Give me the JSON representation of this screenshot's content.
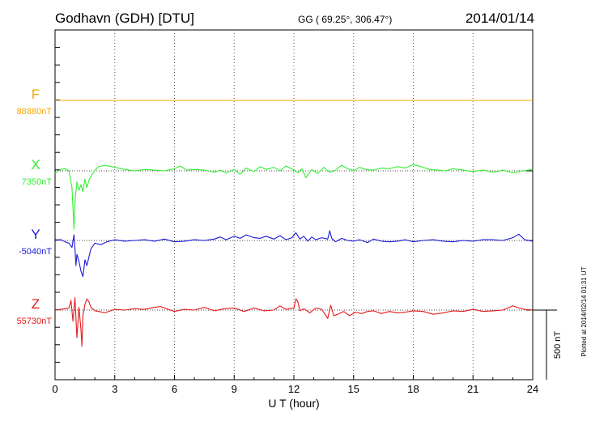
{
  "header": {
    "station": "Godhavn (GDH)  [DTU]",
    "coords": "GG ( 69.25°, 306.47°)",
    "date": "2014/01/14"
  },
  "footer": {
    "plotted": "Plotted at 2014/02/14 01:31  UT"
  },
  "chart_data": {
    "type": "line",
    "xlabel": "U T (hour)",
    "xlim": [
      0,
      24
    ],
    "xticks": [
      0,
      3,
      6,
      9,
      12,
      15,
      18,
      21,
      24
    ],
    "xtick_labels": [
      "0",
      "3",
      "6",
      "9",
      "12",
      "15",
      "18",
      "21",
      "24"
    ],
    "scale_bar_label": "500 nT",
    "scale_bar_nT": 500,
    "series": [
      {
        "name": "F",
        "baseline_label": "88880nT",
        "color": "#f5a800",
        "x": [
          0,
          24
        ],
        "y": [
          0,
          0
        ]
      },
      {
        "name": "X",
        "baseline_label": "7350nT",
        "color": "#33ee33",
        "x": [
          0.0,
          0.3,
          0.5,
          0.7,
          0.85,
          0.95,
          1.0,
          1.1,
          1.2,
          1.3,
          1.4,
          1.5,
          1.6,
          1.7,
          1.8,
          2.0,
          2.2,
          2.5,
          3.0,
          3.5,
          4.0,
          4.5,
          5.0,
          5.5,
          6.0,
          6.3,
          6.6,
          7.0,
          7.5,
          8.0,
          8.3,
          8.6,
          9.0,
          9.3,
          9.6,
          10.0,
          10.3,
          10.6,
          11.0,
          11.3,
          11.6,
          12.0,
          12.2,
          12.4,
          12.6,
          12.9,
          13.2,
          13.5,
          13.8,
          14.1,
          14.4,
          14.7,
          15.0,
          15.3,
          15.6,
          16.0,
          16.4,
          16.8,
          17.2,
          17.6,
          18.0,
          18.4,
          18.8,
          19.2,
          19.6,
          20.0,
          20.5,
          21.0,
          21.5,
          22.0,
          22.5,
          23.0,
          23.5,
          24.0
        ],
        "y": [
          -15,
          10,
          15,
          0,
          -120,
          -420,
          -220,
          -80,
          -140,
          -100,
          -150,
          -60,
          -120,
          -70,
          -40,
          5,
          30,
          40,
          25,
          10,
          0,
          10,
          5,
          0,
          15,
          35,
          5,
          10,
          5,
          -10,
          5,
          -15,
          10,
          -25,
          20,
          -5,
          30,
          10,
          25,
          0,
          35,
          5,
          -15,
          15,
          -50,
          10,
          -20,
          25,
          -10,
          5,
          40,
          15,
          0,
          25,
          10,
          5,
          20,
          15,
          30,
          20,
          45,
          30,
          10,
          5,
          0,
          15,
          5,
          -5,
          5,
          -10,
          5,
          -15,
          0,
          10
        ]
      },
      {
        "name": "Y",
        "baseline_label": "-5040nT",
        "color": "#1a1ad8",
        "x": [
          0.0,
          0.3,
          0.5,
          0.7,
          0.85,
          0.95,
          1.0,
          1.05,
          1.1,
          1.2,
          1.3,
          1.4,
          1.5,
          1.6,
          1.8,
          2.0,
          2.3,
          2.6,
          3.0,
          3.5,
          4.0,
          4.5,
          5.0,
          5.5,
          6.0,
          6.5,
          7.0,
          7.5,
          8.0,
          8.3,
          8.6,
          9.0,
          9.3,
          9.6,
          10.0,
          10.3,
          10.6,
          11.0,
          11.3,
          11.6,
          11.9,
          12.1,
          12.3,
          12.5,
          12.7,
          12.9,
          13.1,
          13.4,
          13.7,
          13.8,
          13.9,
          14.1,
          14.4,
          14.7,
          15.0,
          15.3,
          15.7,
          16.0,
          16.4,
          16.8,
          17.2,
          17.6,
          18.0,
          18.5,
          19.0,
          19.5,
          20.0,
          20.5,
          21.0,
          21.5,
          22.0,
          22.5,
          23.0,
          23.3,
          23.6,
          24.0
        ],
        "y": [
          0,
          5,
          -10,
          -20,
          -50,
          40,
          -60,
          -180,
          -100,
          -150,
          -220,
          -260,
          -140,
          -180,
          -60,
          -20,
          -30,
          -10,
          5,
          -5,
          0,
          5,
          -5,
          10,
          -10,
          -5,
          5,
          0,
          10,
          25,
          5,
          30,
          15,
          40,
          20,
          15,
          30,
          10,
          35,
          5,
          20,
          55,
          10,
          30,
          -5,
          25,
          5,
          20,
          10,
          70,
          15,
          -10,
          15,
          0,
          -5,
          5,
          -15,
          10,
          -5,
          -10,
          -5,
          5,
          -10,
          0,
          5,
          -5,
          -10,
          0,
          -5,
          5,
          5,
          0,
          20,
          45,
          5,
          -5
        ]
      },
      {
        "name": "Z",
        "baseline_label": "55730nT",
        "color": "#e61919",
        "x": [
          0.0,
          0.3,
          0.5,
          0.7,
          0.8,
          0.9,
          1.0,
          1.1,
          1.2,
          1.3,
          1.35,
          1.4,
          1.5,
          1.6,
          1.7,
          1.8,
          2.0,
          2.2,
          2.5,
          3.0,
          3.5,
          4.0,
          4.5,
          5.0,
          5.3,
          5.6,
          6.0,
          6.5,
          7.0,
          7.5,
          8.0,
          8.5,
          9.0,
          9.5,
          10.0,
          10.5,
          11.0,
          11.3,
          11.6,
          12.0,
          12.1,
          12.2,
          12.3,
          12.5,
          12.8,
          13.1,
          13.4,
          13.7,
          13.85,
          14.0,
          14.2,
          14.5,
          14.8,
          15.1,
          15.4,
          15.7,
          16.0,
          16.4,
          16.8,
          17.2,
          17.6,
          18.0,
          18.5,
          19.0,
          19.5,
          20.0,
          20.5,
          21.0,
          21.5,
          22.0,
          22.5,
          23.0,
          23.3,
          23.6,
          24.0
        ],
        "y": [
          0,
          5,
          10,
          15,
          70,
          -80,
          90,
          -200,
          20,
          -140,
          -260,
          -40,
          40,
          80,
          60,
          20,
          -5,
          -10,
          -20,
          5,
          0,
          10,
          5,
          20,
          25,
          10,
          -10,
          5,
          0,
          20,
          -5,
          10,
          15,
          -10,
          15,
          -5,
          0,
          30,
          5,
          15,
          80,
          60,
          -5,
          10,
          -20,
          15,
          5,
          -60,
          35,
          -40,
          -30,
          -10,
          -40,
          -15,
          -25,
          -10,
          -5,
          -25,
          -10,
          -20,
          -15,
          -5,
          -10,
          -30,
          -20,
          -5,
          -10,
          5,
          -10,
          -5,
          0,
          30,
          15,
          5,
          0
        ]
      }
    ]
  }
}
